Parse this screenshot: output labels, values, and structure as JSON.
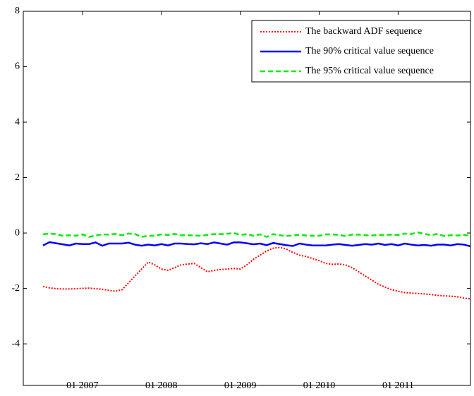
{
  "chart_data": {
    "type": "line",
    "x": [
      "2006-07",
      "2006-08",
      "2006-09",
      "2006-10",
      "2006-11",
      "2006-12",
      "2007-01",
      "2007-02",
      "2007-03",
      "2007-04",
      "2007-05",
      "2007-06",
      "2007-07",
      "2007-08",
      "2007-09",
      "2007-10",
      "2007-11",
      "2007-12",
      "2008-01",
      "2008-02",
      "2008-03",
      "2008-04",
      "2008-05",
      "2008-06",
      "2008-07",
      "2008-08",
      "2008-09",
      "2008-10",
      "2008-11",
      "2008-12",
      "2009-01",
      "2009-02",
      "2009-03",
      "2009-04",
      "2009-05",
      "2009-06",
      "2009-07",
      "2009-08",
      "2009-09",
      "2009-10",
      "2009-11",
      "2009-12",
      "2010-01",
      "2010-02",
      "2010-03",
      "2010-04",
      "2010-05",
      "2010-06",
      "2010-07",
      "2010-08",
      "2010-09",
      "2010-10",
      "2010-11",
      "2010-12",
      "2011-01",
      "2011-02",
      "2011-03",
      "2011-04",
      "2011-05",
      "2011-06",
      "2011-07",
      "2011-08",
      "2011-09",
      "2011-10",
      "2011-11",
      "2011-12"
    ],
    "series": [
      {
        "name": "The backward ADF sequence",
        "color": "#ff0000",
        "dash": "dotted",
        "values": [
          -1.93,
          -1.98,
          -2.01,
          -2.02,
          -2.02,
          -2.01,
          -2.0,
          -1.99,
          -2.01,
          -2.03,
          -2.07,
          -2.1,
          -2.05,
          -1.8,
          -1.55,
          -1.3,
          -1.05,
          -1.15,
          -1.3,
          -1.35,
          -1.25,
          -1.15,
          -1.12,
          -1.1,
          -1.25,
          -1.4,
          -1.35,
          -1.32,
          -1.3,
          -1.28,
          -1.3,
          -1.15,
          -0.95,
          -0.8,
          -0.65,
          -0.55,
          -0.52,
          -0.58,
          -0.7,
          -0.8,
          -0.85,
          -0.92,
          -1.0,
          -1.1,
          -1.13,
          -1.12,
          -1.15,
          -1.25,
          -1.4,
          -1.55,
          -1.7,
          -1.85,
          -1.95,
          -2.05,
          -2.1,
          -2.15,
          -2.17,
          -2.18,
          -2.2,
          -2.22,
          -2.25,
          -2.27,
          -2.28,
          -2.3,
          -2.35,
          -2.38
        ]
      },
      {
        "name": "The 90% critical value sequence",
        "color": "#0000ff",
        "dash": "solid",
        "values": [
          -0.45,
          -0.33,
          -0.37,
          -0.41,
          -0.45,
          -0.38,
          -0.4,
          -0.4,
          -0.34,
          -0.46,
          -0.38,
          -0.38,
          -0.38,
          -0.35,
          -0.42,
          -0.46,
          -0.42,
          -0.45,
          -0.4,
          -0.45,
          -0.38,
          -0.38,
          -0.4,
          -0.41,
          -0.37,
          -0.4,
          -0.34,
          -0.38,
          -0.42,
          -0.34,
          -0.34,
          -0.37,
          -0.41,
          -0.38,
          -0.44,
          -0.36,
          -0.4,
          -0.44,
          -0.47,
          -0.38,
          -0.42,
          -0.45,
          -0.45,
          -0.45,
          -0.42,
          -0.4,
          -0.43,
          -0.46,
          -0.43,
          -0.4,
          -0.42,
          -0.38,
          -0.43,
          -0.4,
          -0.45,
          -0.38,
          -0.42,
          -0.45,
          -0.43,
          -0.46,
          -0.42,
          -0.42,
          -0.45,
          -0.4,
          -0.42,
          -0.48
        ]
      },
      {
        "name": "The 95% critical value sequence",
        "color": "#00ee00",
        "dash": "dashed",
        "values": [
          -0.05,
          -0.02,
          -0.04,
          -0.1,
          -0.08,
          -0.1,
          -0.05,
          -0.14,
          -0.09,
          -0.05,
          -0.06,
          -0.03,
          -0.08,
          -0.02,
          -0.04,
          -0.14,
          -0.1,
          -0.1,
          -0.05,
          -0.07,
          -0.03,
          -0.08,
          -0.08,
          -0.09,
          -0.1,
          -0.07,
          -0.04,
          -0.04,
          -0.03,
          0.0,
          -0.07,
          -0.04,
          -0.1,
          -0.05,
          -0.14,
          -0.04,
          -0.08,
          -0.11,
          -0.09,
          -0.06,
          -0.09,
          -0.1,
          -0.1,
          -0.05,
          -0.05,
          -0.07,
          -0.11,
          -0.06,
          -0.06,
          -0.08,
          -0.09,
          -0.07,
          -0.07,
          -0.06,
          -0.07,
          -0.02,
          -0.04,
          0.02,
          -0.03,
          -0.08,
          -0.03,
          -0.11,
          -0.08,
          -0.09,
          -0.07,
          -0.1
        ]
      }
    ],
    "xlim": [
      "2006-04",
      "2011-12"
    ],
    "xticks": [
      {
        "value": "2007-01",
        "label": "01 2007"
      },
      {
        "value": "2008-01",
        "label": "01 2008"
      },
      {
        "value": "2009-01",
        "label": "01 2009"
      },
      {
        "value": "2010-01",
        "label": "01 2010"
      },
      {
        "value": "2011-01",
        "label": "01 2011"
      }
    ],
    "ylim": [
      -5.5,
      8
    ],
    "yticks": [
      -4,
      -2,
      0,
      2,
      4,
      6,
      8
    ],
    "legend": "top-right",
    "grid": false
  }
}
